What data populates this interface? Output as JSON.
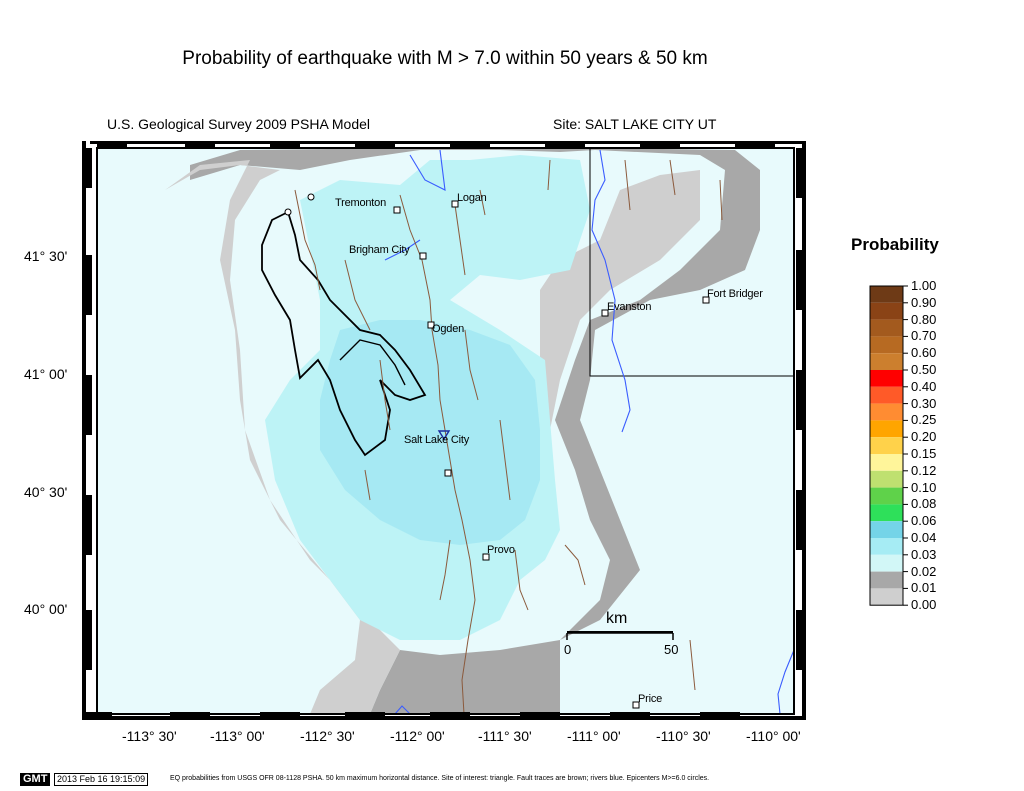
{
  "title": "Probability of earthquake with M > 7.0 within 50 years & 50 km",
  "model_label": "U.S. Geological Survey 2009 PSHA Model",
  "site_label": "Site: SALT  LAKE CITY UT",
  "lat_labels": [
    "41° 30'",
    "41° 00'",
    "40° 30'",
    "40° 00'"
  ],
  "lon_labels": [
    "-113° 30'",
    "-113° 00'",
    "-112° 30'",
    "-112° 00'",
    "-111° 30'",
    "-111° 00'",
    "-110° 30'",
    "-110° 00'"
  ],
  "cities": {
    "tremonton": "Tremonton",
    "logan": "Logan",
    "brigham_city": "Brigham City",
    "ogden": "Ogden",
    "salt_lake_city": "Salt Lake City",
    "provo": "Provo",
    "evanston": "Evanston",
    "fort_bridger": "Fort Bridger",
    "price": "Price"
  },
  "legend": {
    "title": "Probability",
    "entries": [
      {
        "label": "1.00",
        "color": "#6e3a16"
      },
      {
        "label": "0.90",
        "color": "#8a4316"
      },
      {
        "label": "0.80",
        "color": "#a35a1e"
      },
      {
        "label": "0.70",
        "color": "#b76a22"
      },
      {
        "label": "0.60",
        "color": "#cc7f2e"
      },
      {
        "label": "0.50",
        "color": "#ff0000"
      },
      {
        "label": "0.40",
        "color": "#ff5a28"
      },
      {
        "label": "0.30",
        "color": "#ff8c32"
      },
      {
        "label": "0.25",
        "color": "#ffa500"
      },
      {
        "label": "0.20",
        "color": "#ffd24a"
      },
      {
        "label": "0.15",
        "color": "#fff59a"
      },
      {
        "label": "0.12",
        "color": "#bfe070"
      },
      {
        "label": "0.10",
        "color": "#5fd24a"
      },
      {
        "label": "0.08",
        "color": "#2ee05a"
      },
      {
        "label": "0.06",
        "color": "#74d4e8"
      },
      {
        "label": "0.04",
        "color": "#a6ecf4"
      },
      {
        "label": "0.03",
        "color": "#d2f7f7"
      },
      {
        "label": "0.02",
        "color": "#a8a8a8"
      },
      {
        "label": "0.01",
        "color": "#cfcfcf"
      },
      {
        "label": "0.00",
        "color": "#ffffff"
      }
    ]
  },
  "scale_bar": {
    "unit": "km",
    "start": "0",
    "end": "50"
  },
  "footer": {
    "gmt": "GMT",
    "timestamp": "2013 Feb 16 19:15:09",
    "caption": "EQ probabilities from USGS OFR 08-1128 PSHA. 50 km maximum horizontal distance. Site of interest: triangle. Fault traces are brown; rivers blue. Epicenters M>=6.0 circles."
  }
}
